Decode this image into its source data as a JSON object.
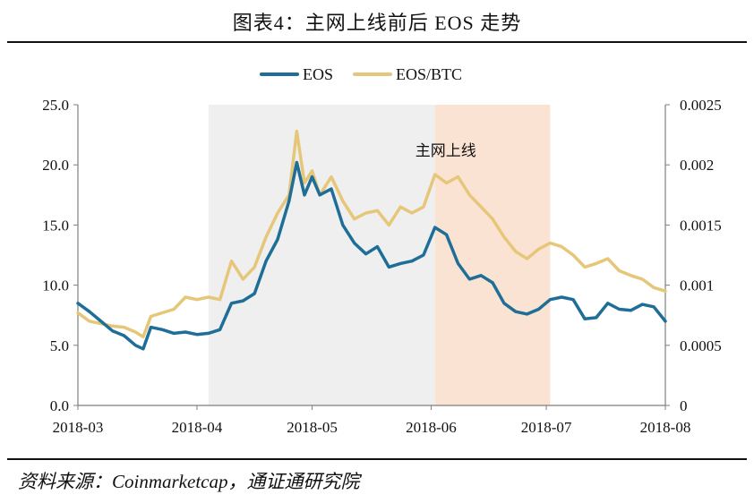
{
  "header": {
    "title": "图表4：主网上线前后 EOS 走势"
  },
  "footer": {
    "source": "资料来源：Coinmarketcap，通证通研究院"
  },
  "colors": {
    "eos": "#1F6E98",
    "eos_btc": "#E6C77A",
    "shade_gray": "#EFEFEF",
    "shade_peach": "#FBE3D3",
    "axis": "#7F7F7F"
  },
  "chart_data": {
    "type": "line",
    "title": "图表4：主网上线前后 EOS 走势",
    "legend": {
      "placement": "top-center",
      "entries": [
        "EOS",
        "EOS/BTC"
      ]
    },
    "x": [
      "2018-03-01",
      "2018-03-04",
      "2018-03-07",
      "2018-03-10",
      "2018-03-13",
      "2018-03-16",
      "2018-03-18",
      "2018-03-20",
      "2018-03-23",
      "2018-03-26",
      "2018-03-29",
      "2018-04-01",
      "2018-04-04",
      "2018-04-07",
      "2018-04-10",
      "2018-04-13",
      "2018-04-16",
      "2018-04-19",
      "2018-04-22",
      "2018-04-25",
      "2018-04-27",
      "2018-04-29",
      "2018-05-01",
      "2018-05-03",
      "2018-05-06",
      "2018-05-09",
      "2018-05-12",
      "2018-05-15",
      "2018-05-18",
      "2018-05-21",
      "2018-05-24",
      "2018-05-27",
      "2018-05-30",
      "2018-06-02",
      "2018-06-05",
      "2018-06-08",
      "2018-06-11",
      "2018-06-14",
      "2018-06-17",
      "2018-06-20",
      "2018-06-23",
      "2018-06-26",
      "2018-06-29",
      "2018-07-02",
      "2018-07-05",
      "2018-07-08",
      "2018-07-11",
      "2018-07-14",
      "2018-07-17",
      "2018-07-20",
      "2018-07-23",
      "2018-07-26",
      "2018-07-29",
      "2018-08-01"
    ],
    "xticks": [
      "2018-03",
      "2018-04",
      "2018-05",
      "2018-06",
      "2018-07",
      "2018-08"
    ],
    "yticks_left": [
      "0.0",
      "5.0",
      "10.0",
      "15.0",
      "20.0",
      "25.0"
    ],
    "yticks_right": [
      "0",
      "0.0005",
      "0.001",
      "0.0015",
      "0.002",
      "0.0025"
    ],
    "ylim_left": [
      0,
      25
    ],
    "ylim_right": [
      0,
      0.0025
    ],
    "grid": false,
    "series": [
      {
        "name": "EOS",
        "axis": "left",
        "values": [
          8.5,
          7.8,
          7.0,
          6.2,
          5.8,
          5.0,
          4.7,
          6.5,
          6.3,
          6.0,
          6.1,
          5.9,
          6.0,
          6.3,
          8.5,
          8.7,
          9.3,
          12.0,
          13.8,
          17.0,
          20.2,
          17.5,
          19.0,
          17.5,
          18.0,
          15.0,
          13.5,
          12.6,
          13.2,
          11.5,
          11.8,
          12.0,
          12.5,
          14.8,
          14.2,
          11.8,
          10.5,
          10.8,
          10.2,
          8.5,
          7.8,
          7.6,
          8.0,
          8.8,
          9.0,
          8.8,
          7.2,
          7.3,
          8.5,
          8.0,
          7.9,
          8.4,
          8.2,
          7.0
        ]
      },
      {
        "name": "EOS/BTC",
        "axis": "right",
        "values": [
          0.00077,
          0.0007,
          0.00068,
          0.00066,
          0.00065,
          0.00061,
          0.00057,
          0.00074,
          0.00077,
          0.0008,
          0.0009,
          0.00088,
          0.0009,
          0.00088,
          0.0012,
          0.00105,
          0.00115,
          0.0014,
          0.0016,
          0.00175,
          0.00228,
          0.00185,
          0.00195,
          0.00175,
          0.0019,
          0.0017,
          0.00155,
          0.0016,
          0.00162,
          0.0015,
          0.00165,
          0.0016,
          0.00165,
          0.00192,
          0.00185,
          0.0019,
          0.00175,
          0.00165,
          0.00155,
          0.0014,
          0.00128,
          0.00122,
          0.0013,
          0.00135,
          0.00132,
          0.00125,
          0.00115,
          0.00118,
          0.00122,
          0.00112,
          0.00108,
          0.00105,
          0.00098,
          0.00095
        ]
      }
    ],
    "shaded_regions": [
      {
        "from": "2018-04-04",
        "to": "2018-06-02",
        "color": "#EFEFEF"
      },
      {
        "from": "2018-06-02",
        "to": "2018-07-02",
        "color": "#FBE3D3"
      }
    ],
    "annotations": [
      {
        "text": "主网上线",
        "at_x": "2018-06-02",
        "at_y_left": 21.2
      }
    ]
  }
}
